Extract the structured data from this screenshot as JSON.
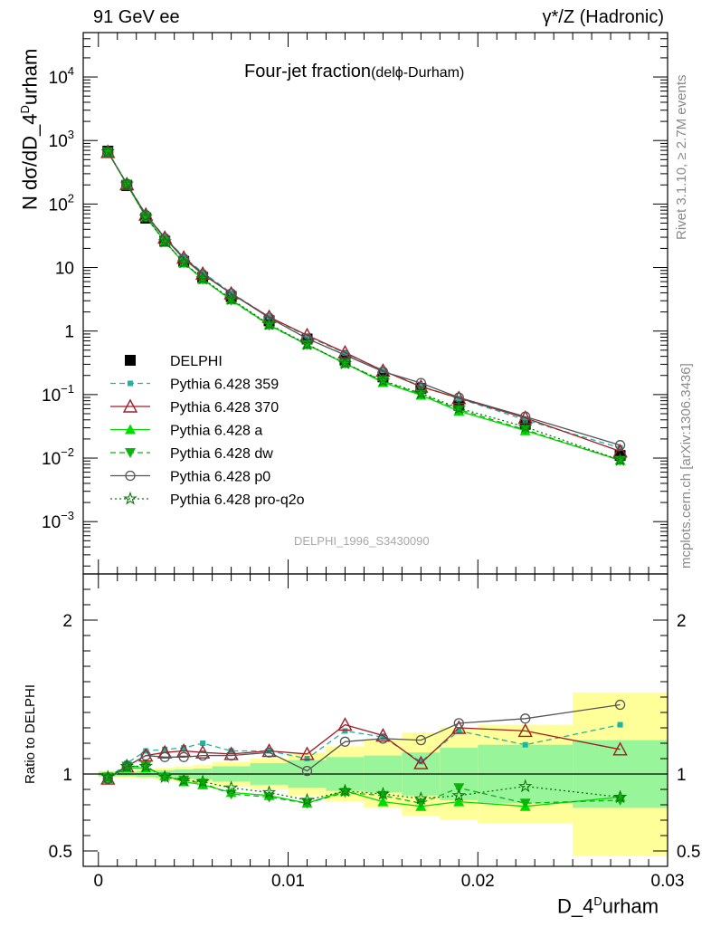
{
  "header": {
    "left": "91 GeV ee",
    "right": "γ*/Z (Hadronic)"
  },
  "side_labels": {
    "rivet": "Rivet 3.1.10, ≥ 2.7M events",
    "source": "mcplots.cern.ch [arXiv:1306.3436]"
  },
  "chart_data": [
    {
      "panel": "main",
      "type": "line",
      "title": "Four-jet fraction",
      "title_suffix": "(delϕ-Durham)",
      "watermark": "DELPHI_1996_S3430090",
      "xlabel": "D_4Durham",
      "ylabel": "N dσ/dD_4Durham",
      "y_scale": "log",
      "xlim": [
        -0.0008,
        0.03
      ],
      "ylim": [
        0.00015,
        50000
      ],
      "y_ticks": [
        "10^-3",
        "10^-2",
        "10^-1",
        "1",
        "10",
        "10^2",
        "10^3",
        "10^4"
      ],
      "x": [
        0.0005,
        0.0015,
        0.0025,
        0.0035,
        0.0045,
        0.0055,
        0.007,
        0.009,
        0.011,
        0.013,
        0.015,
        0.017,
        0.019,
        0.0225,
        0.0275
      ],
      "series": [
        {
          "name": "DELPHI",
          "color": "#000000",
          "marker": "square",
          "line": "none",
          "values": [
            680,
            195,
            60,
            26,
            12.5,
            7.0,
            3.5,
            1.45,
            0.75,
            0.35,
            0.19,
            0.125,
            0.068,
            0.034,
            0.011
          ]
        },
        {
          "name": "Pythia 6.428 359",
          "color": "#1eb4a0",
          "marker": "small-square",
          "line": "dashed",
          "values": [
            660,
            210,
            69,
            30,
            14.5,
            8.4,
            4.0,
            1.67,
            0.83,
            0.45,
            0.24,
            0.135,
            0.087,
            0.04,
            0.0145
          ]
        },
        {
          "name": "Pythia 6.428 370",
          "color": "#a01e28",
          "marker": "open-triangle",
          "line": "solid",
          "values": [
            660,
            205,
            68,
            29.5,
            14.3,
            8.0,
            3.9,
            1.67,
            0.86,
            0.46,
            0.237,
            0.133,
            0.088,
            0.043,
            0.0128
          ]
        },
        {
          "name": "Pythia 6.428 a",
          "color": "#00dc00",
          "marker": "filled-triangle",
          "line": "solid",
          "values": [
            660,
            205,
            63,
            26,
            11.8,
            6.5,
            3.1,
            1.25,
            0.61,
            0.31,
            0.155,
            0.098,
            0.055,
            0.027,
            0.0093
          ]
        },
        {
          "name": "Pythia 6.428 dw",
          "color": "#0ab40a",
          "marker": "filled-inverted-triangle",
          "line": "dashed",
          "values": [
            665,
            206,
            63,
            25.5,
            12.0,
            6.6,
            3.05,
            1.23,
            0.61,
            0.31,
            0.163,
            0.101,
            0.058,
            0.028,
            0.0092
          ]
        },
        {
          "name": "Pythia 6.428 p0",
          "color": "#555555",
          "marker": "open-circle",
          "line": "solid",
          "values": [
            660,
            208,
            67,
            29,
            13.8,
            7.8,
            3.9,
            1.62,
            0.76,
            0.42,
            0.23,
            0.152,
            0.09,
            0.045,
            0.016
          ]
        },
        {
          "name": "Pythia 6.428 pro-q2o",
          "color": "#0a780a",
          "marker": "open-star",
          "line": "dotted",
          "values": [
            665,
            206,
            63,
            25.5,
            12.0,
            6.7,
            3.2,
            1.28,
            0.62,
            0.31,
            0.165,
            0.105,
            0.061,
            0.031,
            0.0093
          ]
        }
      ]
    },
    {
      "panel": "ratio",
      "type": "line",
      "ylabel": "Ratio to DELPHI",
      "xlabel": "D_4Durham",
      "xlim": [
        -0.0008,
        0.03
      ],
      "ylim": [
        0.4,
        2.3
      ],
      "x_ticks": [
        "0",
        "0.01",
        "0.02",
        "0.03"
      ],
      "y_ticks": [
        "0.5",
        "1",
        "2"
      ],
      "bin_edges": [
        0.0,
        0.001,
        0.002,
        0.003,
        0.004,
        0.005,
        0.006,
        0.008,
        0.01,
        0.012,
        0.014,
        0.016,
        0.018,
        0.02,
        0.025,
        0.03
      ],
      "band_stat": [
        0.015,
        0.015,
        0.02,
        0.025,
        0.03,
        0.035,
        0.05,
        0.07,
        0.09,
        0.11,
        0.12,
        0.14,
        0.17,
        0.19,
        0.22
      ],
      "band_total": [
        0.02,
        0.025,
        0.03,
        0.04,
        0.05,
        0.06,
        0.08,
        0.1,
        0.14,
        0.18,
        0.22,
        0.27,
        0.3,
        0.32,
        0.53
      ],
      "x": [
        0.0005,
        0.0015,
        0.0025,
        0.0035,
        0.0045,
        0.0055,
        0.007,
        0.009,
        0.011,
        0.013,
        0.015,
        0.017,
        0.019,
        0.0225,
        0.0275
      ],
      "series": [
        {
          "name": "Pythia 6.428 359",
          "values": [
            0.97,
            1.07,
            1.15,
            1.16,
            1.17,
            1.2,
            1.15,
            1.15,
            1.1,
            1.28,
            1.24,
            1.08,
            1.28,
            1.19,
            1.32
          ]
        },
        {
          "name": "Pythia 6.428 370",
          "values": [
            0.97,
            1.05,
            1.12,
            1.14,
            1.15,
            1.14,
            1.13,
            1.15,
            1.13,
            1.32,
            1.25,
            1.07,
            1.3,
            1.28,
            1.16
          ]
        },
        {
          "name": "Pythia 6.428 a",
          "values": [
            0.97,
            1.04,
            1.04,
            0.99,
            0.95,
            0.93,
            0.88,
            0.86,
            0.81,
            0.89,
            0.82,
            0.79,
            0.82,
            0.79,
            0.85
          ]
        },
        {
          "name": "Pythia 6.428 dw",
          "values": [
            0.98,
            1.05,
            1.05,
            0.98,
            0.96,
            0.94,
            0.87,
            0.85,
            0.81,
            0.88,
            0.86,
            0.81,
            0.91,
            0.81,
            0.83
          ]
        },
        {
          "name": "Pythia 6.428 p0",
          "values": [
            0.97,
            1.05,
            1.12,
            1.11,
            1.11,
            1.12,
            1.12,
            1.14,
            1.02,
            1.21,
            1.23,
            1.22,
            1.33,
            1.36,
            1.45
          ]
        },
        {
          "name": "Pythia 6.428 pro-q2o",
          "values": [
            0.98,
            1.05,
            1.05,
            0.98,
            0.96,
            0.95,
            0.91,
            0.88,
            0.83,
            0.89,
            0.87,
            0.84,
            0.86,
            0.92,
            0.85
          ]
        }
      ]
    }
  ]
}
